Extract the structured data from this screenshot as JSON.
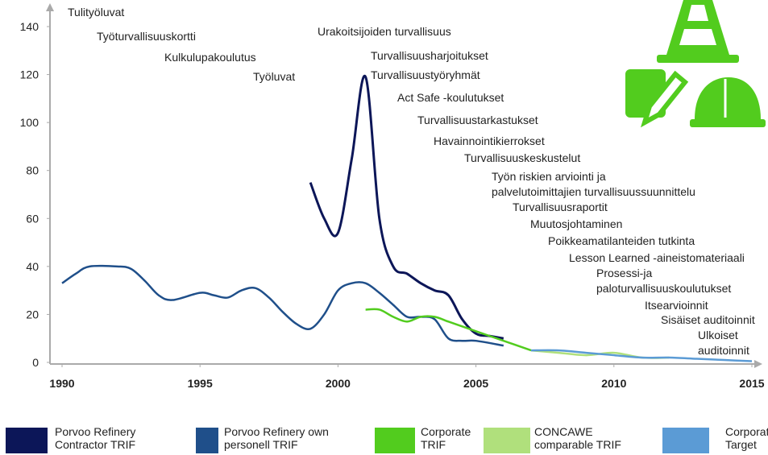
{
  "chart_data": {
    "type": "line",
    "xlim": [
      1990,
      2015
    ],
    "xticks": [
      1990,
      1995,
      2000,
      2005,
      2010,
      2015
    ],
    "ylim": [
      0,
      140
    ],
    "yticks": [
      0,
      20,
      40,
      60,
      80,
      100,
      120,
      140
    ],
    "grid": false,
    "legend": "bottom",
    "annotations": [
      [
        "Tulityöluvat"
      ],
      [
        "Työturvallisuuskortti"
      ],
      [
        "Kulkulupakoulutus"
      ],
      [
        "Työluvat"
      ],
      [
        "Urakoitsijoiden turvallisuus"
      ],
      [
        "Turvallisuusharjoitukset"
      ],
      [
        "Turvallisuustyöryhmät"
      ],
      [
        "Act Safe -koulutukset"
      ],
      [
        "Turvallisuustarkastukset"
      ],
      [
        "Havainnointikierrokset"
      ],
      [
        "Turvallisuuskeskustelut"
      ],
      [
        "Työn riskien arviointi ja",
        "palvelutoimittajien turvallisuussuunnittelu"
      ],
      [
        "Turvallisuusraportit"
      ],
      [
        "Muutosjohtaminen"
      ],
      [
        "Poikkeamatilanteiden tutkinta"
      ],
      [
        "Lesson Learned -aineistomateriaali"
      ],
      [
        "Prosessi-ja",
        "paloturvallisuuskoulutukset"
      ],
      [
        "Itsearvioinnit"
      ],
      [
        "Sisäiset auditoinnit"
      ],
      [
        "Ulkoiset",
        "auditoinnit"
      ]
    ],
    "series": [
      {
        "name": "Porvoo Refinery Contractor TRIF",
        "color": "#0c1658",
        "x": [
          1999,
          1999.5,
          2000,
          2000.5,
          2001,
          2001.5,
          2002,
          2002.5,
          2003,
          2003.5,
          2004,
          2004.5,
          2005,
          2005.5,
          2006
        ],
        "values": [
          75,
          60,
          54,
          85,
          119,
          60,
          40,
          37,
          33,
          30,
          28,
          18,
          12,
          11,
          10
        ]
      },
      {
        "name": "Porvoo Refinery own personell TRIF",
        "color": "#1f4f8a",
        "x": [
          1990,
          1990.5,
          1991,
          1992,
          1992.5,
          1993,
          1993.5,
          1994,
          1995,
          1995.5,
          1996,
          1996.5,
          1997,
          1997.5,
          1998,
          1998.5,
          1999,
          1999.5,
          2000,
          2000.5,
          2001,
          2001.5,
          2002,
          2002.5,
          2003,
          2003.5,
          2004,
          2004.5,
          2005,
          2006
        ],
        "values": [
          33,
          37,
          40,
          40,
          39,
          34,
          28,
          26,
          29,
          28,
          27,
          30,
          31,
          27,
          21,
          16,
          14,
          20,
          30,
          33,
          33,
          29,
          24,
          19,
          19,
          18,
          10,
          9,
          9,
          7
        ]
      },
      {
        "name": "Corporate TRIF",
        "color": "#52cc1e",
        "x": [
          2001,
          2001.5,
          2002,
          2002.5,
          2003,
          2003.5,
          2004,
          2004.5,
          2005,
          2006,
          2007
        ],
        "values": [
          22,
          22,
          19,
          17,
          19,
          19,
          17,
          15,
          13,
          9,
          5
        ]
      },
      {
        "name": "CONCAWE comparable TRIF",
        "color": "#b0e07c",
        "x": [
          2007,
          2008,
          2009,
          2010,
          2011,
          2012
        ],
        "values": [
          5,
          4,
          3,
          4,
          2,
          2
        ]
      },
      {
        "name": "Corporate Target",
        "color": "#5b9bd5",
        "x": [
          2007,
          2008,
          2009,
          2010,
          2011,
          2012,
          2013,
          2014,
          2015
        ],
        "values": [
          5,
          5,
          4,
          3,
          2,
          2,
          1.5,
          1,
          0.5
        ]
      }
    ]
  }
}
